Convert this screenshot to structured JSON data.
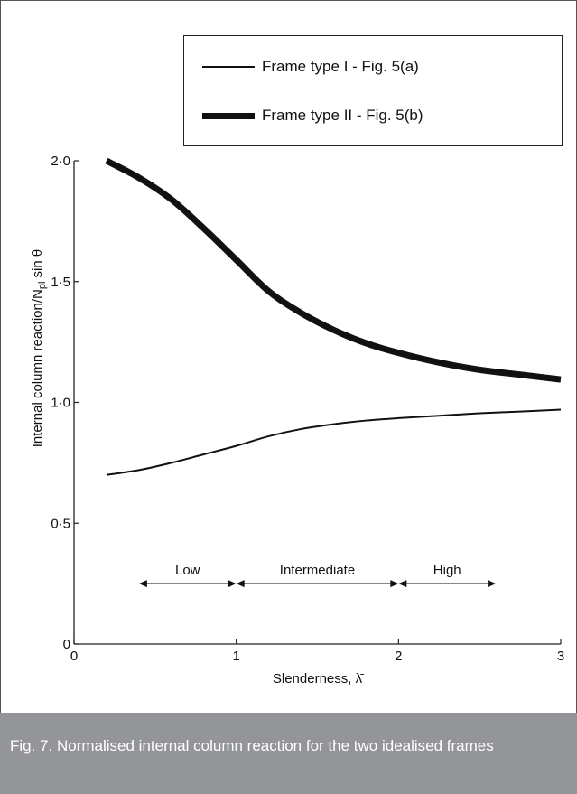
{
  "chart_data": {
    "type": "line",
    "xlabel": "Slenderness, λ̄",
    "ylabel": "Internal column reaction/N",
    "ylabel_sub": "pl",
    "ylabel_tail": " sin θ",
    "xlim": [
      0,
      3
    ],
    "ylim": [
      0,
      2.0
    ],
    "x_ticks": [
      "0",
      "1",
      "2",
      "3"
    ],
    "y_ticks": [
      "0",
      "0·5",
      "1·0",
      "1·5",
      "2·0"
    ],
    "grid": false,
    "legend_position": "top-right",
    "series": [
      {
        "name": "Frame type I - Fig. 5(a)",
        "line_style": "thin",
        "x": [
          0.2,
          0.4,
          0.6,
          0.8,
          1.0,
          1.2,
          1.4,
          1.6,
          1.8,
          2.0,
          2.25,
          2.5,
          2.75,
          3.0
        ],
        "y": [
          0.7,
          0.72,
          0.75,
          0.785,
          0.82,
          0.86,
          0.89,
          0.91,
          0.925,
          0.935,
          0.945,
          0.955,
          0.962,
          0.97
        ]
      },
      {
        "name": "Frame type II - Fig. 5(b)",
        "line_style": "thick",
        "x": [
          0.2,
          0.4,
          0.6,
          0.8,
          1.0,
          1.2,
          1.4,
          1.6,
          1.8,
          2.0,
          2.25,
          2.5,
          2.75,
          3.0
        ],
        "y": [
          2.0,
          1.93,
          1.84,
          1.72,
          1.59,
          1.46,
          1.37,
          1.3,
          1.245,
          1.205,
          1.165,
          1.135,
          1.115,
          1.095
        ]
      }
    ],
    "ranges": [
      {
        "label": "Low",
        "from": 0.4,
        "to": 1.0
      },
      {
        "label": "Intermediate",
        "from": 1.0,
        "to": 2.0
      },
      {
        "label": "High",
        "from": 2.0,
        "to": 2.6
      }
    ],
    "range_y": 0.25,
    "colors": {
      "line": "#111111",
      "axis": "#222222",
      "caption_bg": "#939598"
    }
  },
  "legend": {
    "items": [
      {
        "label": "Frame type I - Fig. 5(a)"
      },
      {
        "label": "Frame type II - Fig. 5(b)"
      }
    ]
  },
  "caption": "Fig. 7. Normalised internal column reaction for the two idealised frames"
}
